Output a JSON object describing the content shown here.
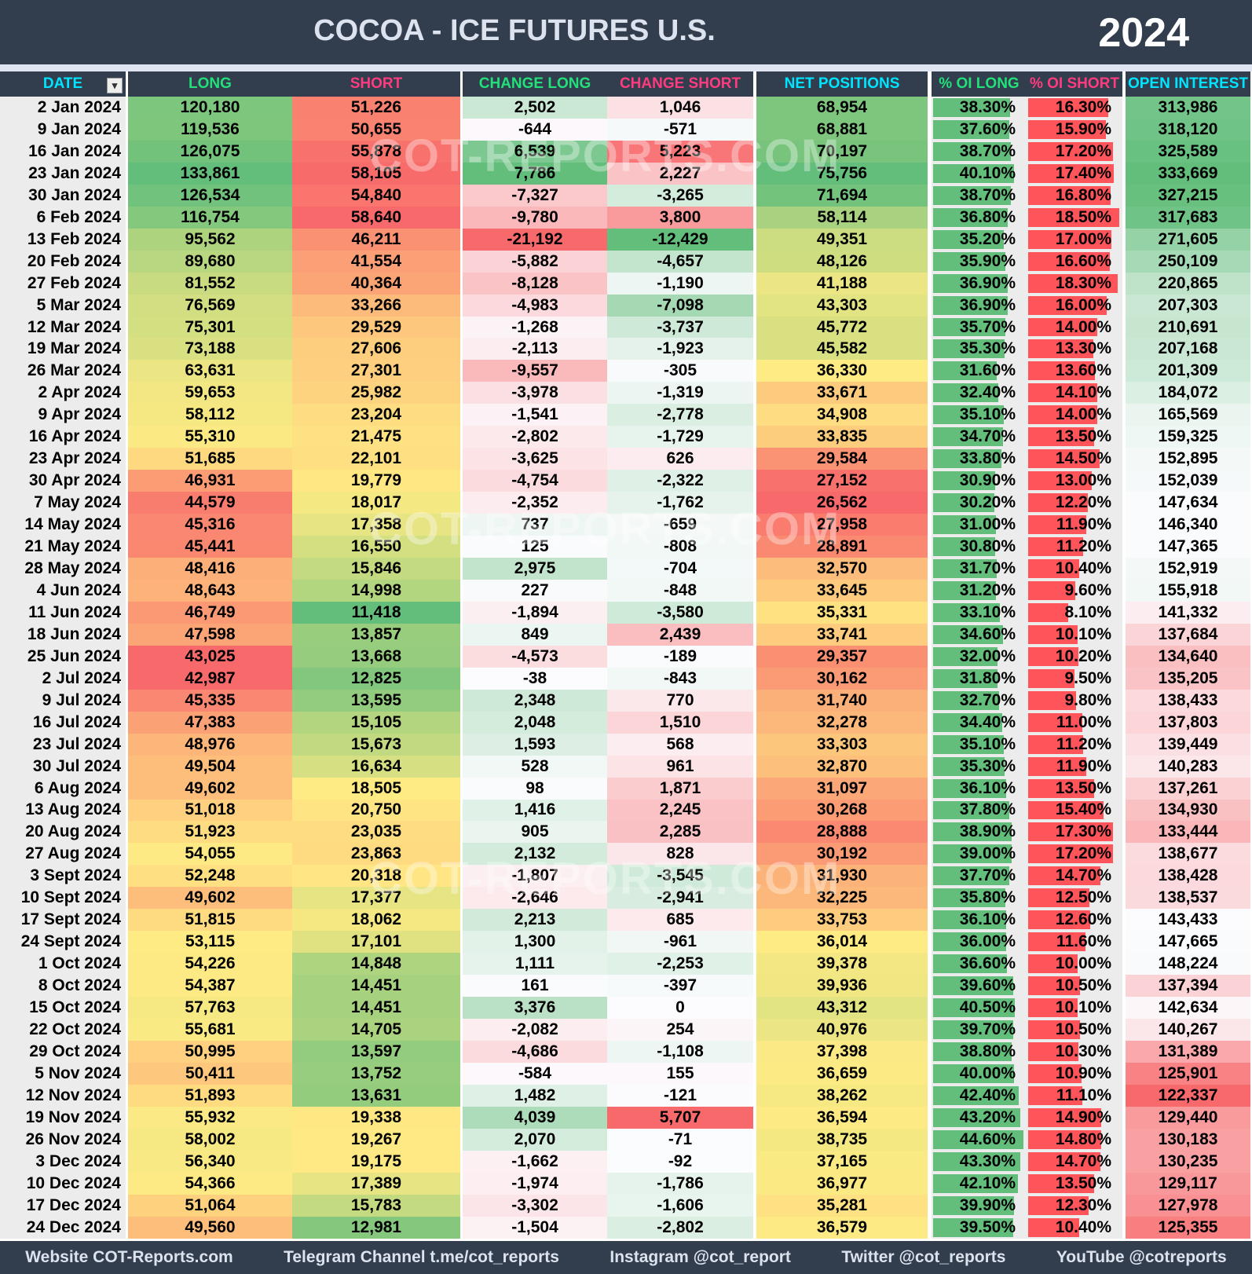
{
  "header": {
    "title": "COCOA - ICE FUTURES U.S.",
    "year": "2024"
  },
  "columns": [
    {
      "label": "DATE",
      "color": "#00e5ff"
    },
    {
      "label": "LONG",
      "color": "#22e07a"
    },
    {
      "label": "SHORT",
      "color": "#ff3b7f"
    },
    {
      "label": "CHANGE LONG",
      "color": "#22e07a"
    },
    {
      "label": "CHANGE SHORT",
      "color": "#ff3b7f"
    },
    {
      "label": "NET POSITIONS",
      "color": "#00e5ff"
    },
    {
      "label": "% OI LONG",
      "color": "#22e07a"
    },
    {
      "label": "% OI SHORT",
      "color": "#ff3b7f"
    },
    {
      "label": "OPEN INTEREST",
      "color": "#00e5ff"
    }
  ],
  "filter_icon": "filter-sort-icon",
  "watermark": "COT-REPORTS.COM",
  "rows": [
    [
      "2 Jan 2024",
      "120,180",
      "51,226",
      "2,502",
      "1,046",
      "68,954",
      "38.30%",
      "16.30%",
      "313,986"
    ],
    [
      "9 Jan 2024",
      "119,536",
      "50,655",
      "-644",
      "-571",
      "68,881",
      "37.60%",
      "15.90%",
      "318,120"
    ],
    [
      "16 Jan 2024",
      "126,075",
      "55,878",
      "6,539",
      "5,223",
      "70,197",
      "38.70%",
      "17.20%",
      "325,589"
    ],
    [
      "23 Jan 2024",
      "133,861",
      "58,105",
      "7,786",
      "2,227",
      "75,756",
      "40.10%",
      "17.40%",
      "333,669"
    ],
    [
      "30 Jan 2024",
      "126,534",
      "54,840",
      "-7,327",
      "-3,265",
      "71,694",
      "38.70%",
      "16.80%",
      "327,215"
    ],
    [
      "6 Feb 2024",
      "116,754",
      "58,640",
      "-9,780",
      "3,800",
      "58,114",
      "36.80%",
      "18.50%",
      "317,683"
    ],
    [
      "13 Feb 2024",
      "95,562",
      "46,211",
      "-21,192",
      "-12,429",
      "49,351",
      "35.20%",
      "17.00%",
      "271,605"
    ],
    [
      "20 Feb 2024",
      "89,680",
      "41,554",
      "-5,882",
      "-4,657",
      "48,126",
      "35.90%",
      "16.60%",
      "250,109"
    ],
    [
      "27 Feb 2024",
      "81,552",
      "40,364",
      "-8,128",
      "-1,190",
      "41,188",
      "36.90%",
      "18.30%",
      "220,865"
    ],
    [
      "5 Mar 2024",
      "76,569",
      "33,266",
      "-4,983",
      "-7,098",
      "43,303",
      "36.90%",
      "16.00%",
      "207,303"
    ],
    [
      "12 Mar 2024",
      "75,301",
      "29,529",
      "-1,268",
      "-3,737",
      "45,772",
      "35.70%",
      "14.00%",
      "210,691"
    ],
    [
      "19 Mar 2024",
      "73,188",
      "27,606",
      "-2,113",
      "-1,923",
      "45,582",
      "35.30%",
      "13.30%",
      "207,168"
    ],
    [
      "26 Mar 2024",
      "63,631",
      "27,301",
      "-9,557",
      "-305",
      "36,330",
      "31.60%",
      "13.60%",
      "201,309"
    ],
    [
      "2 Apr 2024",
      "59,653",
      "25,982",
      "-3,978",
      "-1,319",
      "33,671",
      "32.40%",
      "14.10%",
      "184,072"
    ],
    [
      "9 Apr 2024",
      "58,112",
      "23,204",
      "-1,541",
      "-2,778",
      "34,908",
      "35.10%",
      "14.00%",
      "165,569"
    ],
    [
      "16 Apr 2024",
      "55,310",
      "21,475",
      "-2,802",
      "-1,729",
      "33,835",
      "34.70%",
      "13.50%",
      "159,325"
    ],
    [
      "23 Apr 2024",
      "51,685",
      "22,101",
      "-3,625",
      "626",
      "29,584",
      "33.80%",
      "14.50%",
      "152,895"
    ],
    [
      "30 Apr 2024",
      "46,931",
      "19,779",
      "-4,754",
      "-2,322",
      "27,152",
      "30.90%",
      "13.00%",
      "152,039"
    ],
    [
      "7 May 2024",
      "44,579",
      "18,017",
      "-2,352",
      "-1,762",
      "26,562",
      "30.20%",
      "12.20%",
      "147,634"
    ],
    [
      "14 May 2024",
      "45,316",
      "17,358",
      "737",
      "-659",
      "27,958",
      "31.00%",
      "11.90%",
      "146,340"
    ],
    [
      "21 May 2024",
      "45,441",
      "16,550",
      "125",
      "-808",
      "28,891",
      "30.80%",
      "11.20%",
      "147,365"
    ],
    [
      "28 May 2024",
      "48,416",
      "15,846",
      "2,975",
      "-704",
      "32,570",
      "31.70%",
      "10.40%",
      "152,919"
    ],
    [
      "4 Jun 2024",
      "48,643",
      "14,998",
      "227",
      "-848",
      "33,645",
      "31.20%",
      "9.60%",
      "155,918"
    ],
    [
      "11 Jun 2024",
      "46,749",
      "11,418",
      "-1,894",
      "-3,580",
      "35,331",
      "33.10%",
      "8.10%",
      "141,332"
    ],
    [
      "18 Jun 2024",
      "47,598",
      "13,857",
      "849",
      "2,439",
      "33,741",
      "34.60%",
      "10.10%",
      "137,684"
    ],
    [
      "25 Jun 2024",
      "43,025",
      "13,668",
      "-4,573",
      "-189",
      "29,357",
      "32.00%",
      "10.20%",
      "134,640"
    ],
    [
      "2 Jul 2024",
      "42,987",
      "12,825",
      "-38",
      "-843",
      "30,162",
      "31.80%",
      "9.50%",
      "135,205"
    ],
    [
      "9 Jul 2024",
      "45,335",
      "13,595",
      "2,348",
      "770",
      "31,740",
      "32.70%",
      "9.80%",
      "138,433"
    ],
    [
      "16 Jul 2024",
      "47,383",
      "15,105",
      "2,048",
      "1,510",
      "32,278",
      "34.40%",
      "11.00%",
      "137,803"
    ],
    [
      "23 Jul 2024",
      "48,976",
      "15,673",
      "1,593",
      "568",
      "33,303",
      "35.10%",
      "11.20%",
      "139,449"
    ],
    [
      "30 Jul 2024",
      "49,504",
      "16,634",
      "528",
      "961",
      "32,870",
      "35.30%",
      "11.90%",
      "140,283"
    ],
    [
      "6 Aug 2024",
      "49,602",
      "18,505",
      "98",
      "1,871",
      "31,097",
      "36.10%",
      "13.50%",
      "137,261"
    ],
    [
      "13 Aug 2024",
      "51,018",
      "20,750",
      "1,416",
      "2,245",
      "30,268",
      "37.80%",
      "15.40%",
      "134,930"
    ],
    [
      "20 Aug 2024",
      "51,923",
      "23,035",
      "905",
      "2,285",
      "28,888",
      "38.90%",
      "17.30%",
      "133,444"
    ],
    [
      "27 Aug 2024",
      "54,055",
      "23,863",
      "2,132",
      "828",
      "30,192",
      "39.00%",
      "17.20%",
      "138,677"
    ],
    [
      "3 Sept 2024",
      "52,248",
      "20,318",
      "-1,807",
      "-3,545",
      "31,930",
      "37.70%",
      "14.70%",
      "138,428"
    ],
    [
      "10 Sept 2024",
      "49,602",
      "17,377",
      "-2,646",
      "-2,941",
      "32,225",
      "35.80%",
      "12.50%",
      "138,537"
    ],
    [
      "17 Sept 2024",
      "51,815",
      "18,062",
      "2,213",
      "685",
      "33,753",
      "36.10%",
      "12.60%",
      "143,433"
    ],
    [
      "24 Sept 2024",
      "53,115",
      "17,101",
      "1,300",
      "-961",
      "36,014",
      "36.00%",
      "11.60%",
      "147,665"
    ],
    [
      "1 Oct 2024",
      "54,226",
      "14,848",
      "1,111",
      "-2,253",
      "39,378",
      "36.60%",
      "10.00%",
      "148,224"
    ],
    [
      "8 Oct 2024",
      "54,387",
      "14,451",
      "161",
      "-397",
      "39,936",
      "39.60%",
      "10.50%",
      "137,394"
    ],
    [
      "15 Oct 2024",
      "57,763",
      "14,451",
      "3,376",
      "0",
      "43,312",
      "40.50%",
      "10.10%",
      "142,634"
    ],
    [
      "22 Oct 2024",
      "55,681",
      "14,705",
      "-2,082",
      "254",
      "40,976",
      "39.70%",
      "10.50%",
      "140,267"
    ],
    [
      "29 Oct 2024",
      "50,995",
      "13,597",
      "-4,686",
      "-1,108",
      "37,398",
      "38.80%",
      "10.30%",
      "131,389"
    ],
    [
      "5 Nov 2024",
      "50,411",
      "13,752",
      "-584",
      "155",
      "36,659",
      "40.00%",
      "10.90%",
      "125,901"
    ],
    [
      "12 Nov 2024",
      "51,893",
      "13,631",
      "1,482",
      "-121",
      "38,262",
      "42.40%",
      "11.10%",
      "122,337"
    ],
    [
      "19 Nov 2024",
      "55,932",
      "19,338",
      "4,039",
      "5,707",
      "36,594",
      "43.20%",
      "14.90%",
      "129,440"
    ],
    [
      "26 Nov 2024",
      "58,002",
      "19,267",
      "2,070",
      "-71",
      "38,735",
      "44.60%",
      "14.80%",
      "130,183"
    ],
    [
      "3 Dec 2024",
      "56,340",
      "19,175",
      "-1,662",
      "-92",
      "37,165",
      "43.30%",
      "14.70%",
      "130,235"
    ],
    [
      "10 Dec 2024",
      "54,366",
      "17,389",
      "-1,974",
      "-1,786",
      "36,977",
      "42.10%",
      "13.50%",
      "129,117"
    ],
    [
      "17 Dec 2024",
      "51,064",
      "15,783",
      "-3,302",
      "-1,606",
      "35,281",
      "39.90%",
      "12.30%",
      "127,978"
    ],
    [
      "24 Dec 2024",
      "49,560",
      "12,981",
      "-1,504",
      "-2,802",
      "36,579",
      "39.50%",
      "10.40%",
      "125,355"
    ]
  ],
  "footer": [
    "Website COT-Reports.com",
    "Telegram Channel t.me/cot_reports",
    "Instagram @cot_report",
    "Twitter @cot_reports",
    "YouTube @cotreports"
  ],
  "colors": {
    "green": "#63be7b",
    "yellow": "#ffeb84",
    "red": "#f8696b",
    "white": "#fcfcff",
    "bar_long": "#63be7b",
    "bar_short": "#ff555a",
    "header_bg": "#323d4e"
  }
}
